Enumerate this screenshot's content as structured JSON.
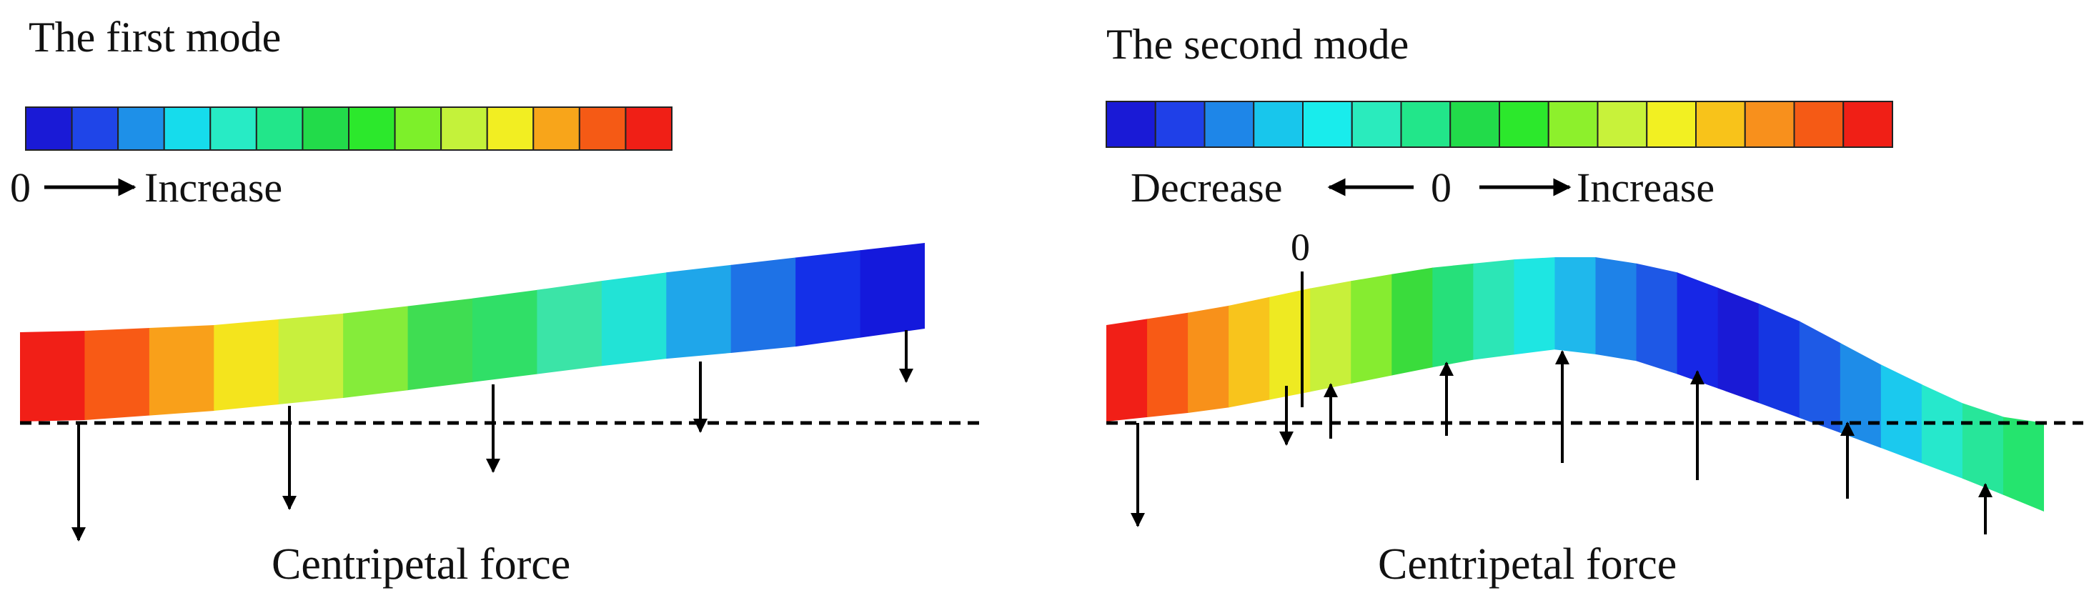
{
  "left_panel": {
    "title": "The first mode",
    "legend_left": "0",
    "legend_right": "Increase",
    "force_label": "Centripetal force",
    "colorbar": [
      "#1A1AD6",
      "#1F45E8",
      "#1E90E8",
      "#16DCEC",
      "#27EBC5",
      "#22E68A",
      "#22DB4A",
      "#2CE82C",
      "#7DF02A",
      "#C4F23A",
      "#F2EE22",
      "#F8A51A",
      "#F55A15",
      "#F01F16"
    ],
    "segments": [
      "#F11F17",
      "#F85A15",
      "#F9A01A",
      "#F4E41D",
      "#C8F03D",
      "#85EC3A",
      "#3FDD52",
      "#30DF67",
      "#3BE4A7",
      "#22E3D6",
      "#1FA6EA",
      "#1E72E6",
      "#1430E8",
      "#1419DC"
    ]
  },
  "right_panel": {
    "title": "The second mode",
    "legend_left": "Decrease",
    "legend_center": "0",
    "legend_right": "Increase",
    "zero_marker": "0",
    "force_label": "Centripetal force",
    "colorbar": [
      "#1A1AD6",
      "#1F40E8",
      "#1E86E8",
      "#18C6EC",
      "#19ECEC",
      "#2AEBBD",
      "#22E68A",
      "#22DB4A",
      "#2CE82C",
      "#8DF02C",
      "#C8F23A",
      "#F2F022",
      "#F8C31A",
      "#F8901C",
      "#F55A15",
      "#F01F16"
    ],
    "segments": [
      "#F11F17",
      "#F85A15",
      "#F8911A",
      "#F8C41C",
      "#EEEA22",
      "#C8F03A",
      "#86EC30",
      "#3ADC3C",
      "#26E07A",
      "#2CE6B6",
      "#1EE6E2",
      "#1FB8EC",
      "#1E82E8",
      "#1E58E6",
      "#1727E6",
      "#1A1AD6",
      "#1536E2",
      "#1E5AE6",
      "#1E8CE8",
      "#1BC9EE",
      "#26E8CC",
      "#27E69A",
      "#25E46E"
    ]
  }
}
